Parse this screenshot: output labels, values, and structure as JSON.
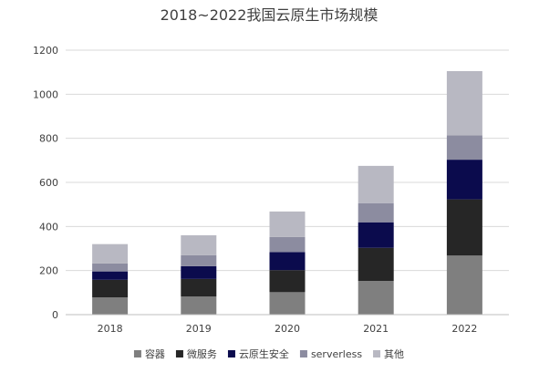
{
  "chart_data": {
    "type": "bar",
    "stacked": true,
    "title": "2018~2022我国云原生市场规模",
    "xlabel": "",
    "ylabel": "",
    "categories": [
      "2018",
      "2019",
      "2020",
      "2021",
      "2022"
    ],
    "ylim": [
      0,
      1200
    ],
    "yticks": [
      0,
      200,
      400,
      600,
      800,
      1000,
      1200
    ],
    "grid": true,
    "legend_position": "bottom",
    "series": [
      {
        "name": "容器",
        "color": "#7f7f7f",
        "values": [
          78,
          82,
          102,
          153,
          268
        ]
      },
      {
        "name": "微服务",
        "color": "#262626",
        "values": [
          80,
          80,
          100,
          150,
          255
        ]
      },
      {
        "name": "云原生安全",
        "color": "#0b0b4d",
        "values": [
          38,
          58,
          82,
          116,
          180
        ]
      },
      {
        "name": "serverless",
        "color": "#8c8ca0",
        "values": [
          36,
          50,
          68,
          86,
          110
        ]
      },
      {
        "name": "其他",
        "color": "#b8b8c2",
        "values": [
          88,
          90,
          116,
          170,
          292
        ]
      }
    ]
  }
}
